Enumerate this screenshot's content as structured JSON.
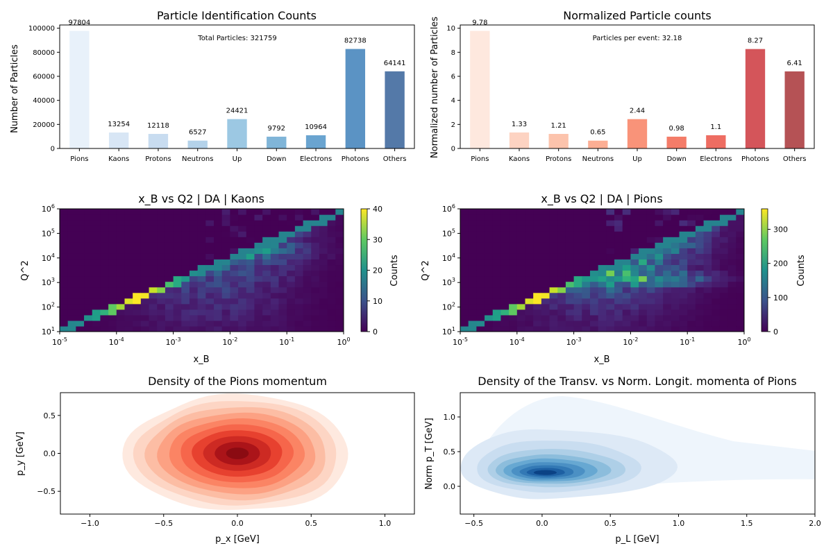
{
  "chart_data": [
    {
      "type": "bar",
      "title": "Particle Identification Counts",
      "xlabel": "",
      "ylabel": "Number of Particles",
      "categories": [
        "Pions",
        "Kaons",
        "Protons",
        "Neutrons",
        "Up",
        "Down",
        "Electrons",
        "Photons",
        "Others"
      ],
      "values": [
        97804,
        13254,
        12118,
        6527,
        24421,
        9792,
        10964,
        82738,
        64141
      ],
      "value_labels": [
        "97804",
        "13254",
        "12118",
        "6527",
        "24421",
        "9792",
        "10964",
        "82738",
        "64141"
      ],
      "ylim": [
        0,
        102690
      ],
      "yticks": [
        "0",
        "20000",
        "40000",
        "60000",
        "80000",
        "100000"
      ],
      "annotation": "Total Particles: 321759",
      "colors": [
        "#e8f1fa",
        "#d8e6f5",
        "#c8dcf0",
        "#b4d2ea",
        "#9cc8e3",
        "#80b5d8",
        "#6aa4d0",
        "#5b93c4",
        "#5479a8"
      ]
    },
    {
      "type": "bar",
      "title": "Normalized Particle counts",
      "xlabel": "",
      "ylabel": "Normalized number of Particles",
      "categories": [
        "Pions",
        "Kaons",
        "Protons",
        "Neutrons",
        "Up",
        "Down",
        "Electrons",
        "Photons",
        "Others"
      ],
      "values": [
        9.78,
        1.33,
        1.21,
        0.65,
        2.44,
        0.98,
        1.1,
        8.27,
        6.41
      ],
      "value_labels": [
        "9.78",
        "1.33",
        "1.21",
        "0.65",
        "2.44",
        "0.98",
        "1.1",
        "8.27",
        "6.41"
      ],
      "ylim": [
        0,
        10.27
      ],
      "yticks": [
        "0",
        "2",
        "4",
        "6",
        "8",
        "10"
      ],
      "annotation": "Particles per event: 32.18",
      "colors": [
        "#fee8de",
        "#fdd3c2",
        "#fcc3ac",
        "#fcae94",
        "#f99379",
        "#f47c69",
        "#ee6d62",
        "#d4555a",
        "#b55255"
      ]
    },
    {
      "type": "heatmap",
      "title": "x_B vs Q2   |   DA   |   Kaons",
      "xlabel": "x_B",
      "ylabel": "Q^2",
      "xscale": "log",
      "yscale": "log",
      "xlim": [
        1e-05,
        1
      ],
      "ylim": [
        10,
        1000000
      ],
      "xticks": [
        "10^-5",
        "10^-4",
        "10^-3",
        "10^-2",
        "10^-1",
        "10^0"
      ],
      "yticks": [
        "10^1",
        "10^2",
        "10^3",
        "10^4",
        "10^5",
        "10^6"
      ],
      "colorbar_label": "Counts",
      "colorbar_ticks": [
        "0",
        "10",
        "20",
        "30",
        "40"
      ],
      "cmax": 40,
      "colormap": "viridis",
      "ridge_peak": 40,
      "body_level": 13,
      "dominant_band_q2": 20000
    },
    {
      "type": "heatmap",
      "title": "x_B vs Q2   |   DA   |   Pions",
      "xlabel": "x_B",
      "ylabel": "Q^2",
      "xscale": "log",
      "yscale": "log",
      "xlim": [
        1e-05,
        1
      ],
      "ylim": [
        10,
        1000000
      ],
      "xticks": [
        "10^-5",
        "10^-4",
        "10^-3",
        "10^-2",
        "10^-1",
        "10^0"
      ],
      "yticks": [
        "10^1",
        "10^2",
        "10^3",
        "10^4",
        "10^5",
        "10^6"
      ],
      "colorbar_label": "Counts",
      "colorbar_ticks": [
        "0",
        "100",
        "200",
        "300"
      ],
      "cmax": 360,
      "colormap": "viridis",
      "ridge_peak": 360,
      "body_level": 200,
      "dominant_band_q2": 1500
    },
    {
      "type": "contour",
      "title": "Density of the Pions momentum",
      "xlabel": "p_x [GeV]",
      "ylabel": "p_y [GeV]",
      "xlim": [
        -1.2,
        1.2
      ],
      "ylim": [
        -0.8,
        0.8
      ],
      "xticks": [
        "−1.0",
        "−0.5",
        "0.0",
        "0.5",
        "1.0"
      ],
      "yticks": [
        "−0.5",
        "0.0",
        "0.5"
      ],
      "center": [
        0,
        0
      ],
      "spread": [
        0.75,
        0.75
      ],
      "levels": 10,
      "colormap": "Reds"
    },
    {
      "type": "contour",
      "title": "Density of the Transv. vs Norm. Longit. momenta of Pions",
      "xlabel": "p_L [GeV]",
      "ylabel": "Norm p_T [GeV]",
      "xlim": [
        -0.6,
        2.0
      ],
      "ylim": [
        -0.4,
        1.35
      ],
      "xticks": [
        "−0.5",
        "0.0",
        "0.5",
        "1.0",
        "1.5",
        "2.0"
      ],
      "yticks": [
        "0.0",
        "0.5",
        "1.0"
      ],
      "center": [
        0.02,
        0.19
      ],
      "levels": 10,
      "colormap": "Blues"
    }
  ]
}
